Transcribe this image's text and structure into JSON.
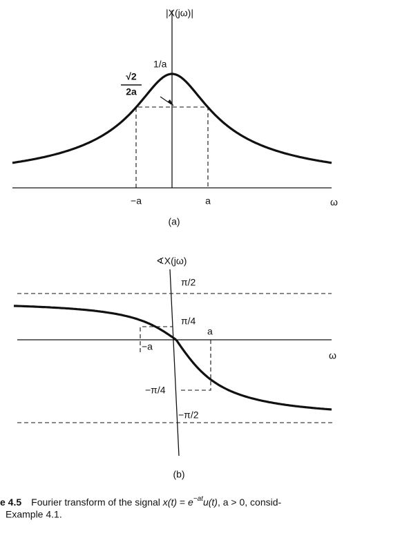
{
  "panel_a": {
    "y_label": "|X(jω)|",
    "peak_label": "1/a",
    "half_label_num": "√2",
    "half_label_den": "2a",
    "x_neg": "−a",
    "x_pos": "a",
    "x_label": "ω",
    "caption": "(a)"
  },
  "panel_b": {
    "y_label": "∢X(jω)",
    "top": "π/2",
    "quarter": "π/4",
    "x_neg": "−a",
    "x_pos": "a",
    "neg_quarter": "−π/4",
    "bottom": "−π/2",
    "x_label": "ω",
    "caption": "(b)"
  },
  "figure_caption": {
    "number": "e 4.5",
    "line1_a": "Fourier transform of the signal ",
    "line1_x": "x(t)",
    "line1_eq": " = ",
    "line1_e": "e",
    "line1_exp": "−at",
    "line1_u": "u(t)",
    "line1_rest": ", a > 0, consid-",
    "line2": "Example 4.1."
  }
}
